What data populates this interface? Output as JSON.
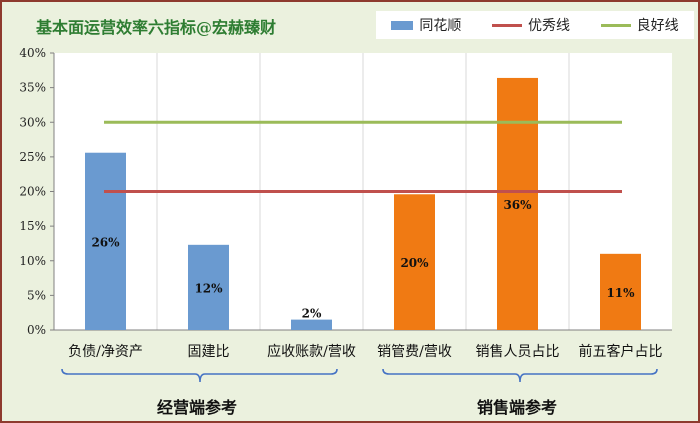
{
  "chart_data": {
    "type": "bar",
    "title": "基本面运营效率六指标@宏赫臻财",
    "categories": [
      "负债/净资产",
      "固建比",
      "应收账款/营收",
      "销管费/营收",
      "销售人员占比",
      "前五客户占比"
    ],
    "values": [
      25.6,
      12.3,
      1.5,
      19.6,
      36.4,
      11.0
    ],
    "data_labels": [
      "26%",
      "12%",
      "2%",
      "20%",
      "36%",
      "11%"
    ],
    "bar_colors": [
      "#6a9ad0",
      "#6a9ad0",
      "#6a9ad0",
      "#f07a13",
      "#f07a13",
      "#f07a13"
    ],
    "ylim": [
      0,
      40
    ],
    "yticks": [
      0,
      5,
      10,
      15,
      20,
      25,
      30,
      35,
      40
    ],
    "ytick_labels": [
      "0%",
      "5%",
      "10%",
      "15%",
      "20%",
      "25%",
      "30%",
      "35%",
      "40%"
    ],
    "reference_lines": [
      {
        "name": "优秀线",
        "value": 20,
        "color": "#c0504d"
      },
      {
        "name": "良好线",
        "value": 30,
        "color": "#9bbb59"
      }
    ],
    "legend": {
      "placement": "top-right",
      "entries": [
        {
          "label": "同花顺",
          "color": "#6a9ad0",
          "kind": "box"
        },
        {
          "label": "优秀线",
          "color": "#c0504d",
          "kind": "line"
        },
        {
          "label": "良好线",
          "color": "#9bbb59",
          "kind": "line"
        }
      ]
    },
    "groups": [
      {
        "label": "经营端参考",
        "categories": [
          "负债/净资产",
          "固建比",
          "应收账款/营收"
        ]
      },
      {
        "label": "销售端参考",
        "categories": [
          "销管费/营收",
          "销售人员占比",
          "前五客户占比"
        ]
      }
    ],
    "grid": "vertical-category-dividers"
  }
}
